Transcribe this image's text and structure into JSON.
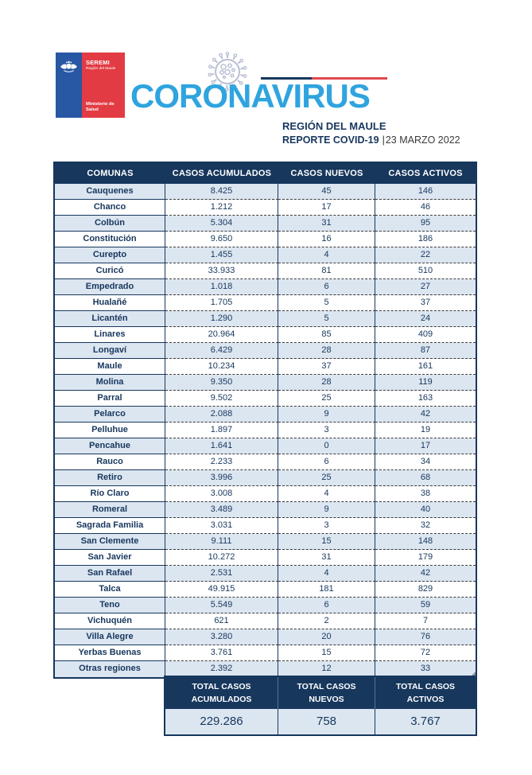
{
  "header": {
    "logo": {
      "agency": "SEREMI",
      "region": "Región del Maule",
      "ministry_line1": "Ministerio de",
      "ministry_line2": "Salud"
    },
    "title": "CORONAVIRUS",
    "region_title": "REGIÓN DEL MAULE",
    "report_label": "REPORTE COVID-19",
    "report_separator": "|",
    "report_date": "23 MARZO 2022"
  },
  "table": {
    "columns": [
      "COMUNAS",
      "CASOS ACUMULADOS",
      "CASOS NUEVOS",
      "CASOS ACTIVOS"
    ],
    "rows": [
      [
        "Cauquenes",
        "8.425",
        "45",
        "146"
      ],
      [
        "Chanco",
        "1.212",
        "17",
        "46"
      ],
      [
        "Colbún",
        "5.304",
        "31",
        "95"
      ],
      [
        "Constitución",
        "9.650",
        "16",
        "186"
      ],
      [
        "Curepto",
        "1.455",
        "4",
        "22"
      ],
      [
        "Curicó",
        "33.933",
        "81",
        "510"
      ],
      [
        "Empedrado",
        "1.018",
        "6",
        "27"
      ],
      [
        "Hualañé",
        "1.705",
        "5",
        "37"
      ],
      [
        "Licantén",
        "1.290",
        "5",
        "24"
      ],
      [
        "Linares",
        "20.964",
        "85",
        "409"
      ],
      [
        "Longaví",
        "6.429",
        "28",
        "87"
      ],
      [
        "Maule",
        "10.234",
        "37",
        "161"
      ],
      [
        "Molina",
        "9.350",
        "28",
        "119"
      ],
      [
        "Parral",
        "9.502",
        "25",
        "163"
      ],
      [
        "Pelarco",
        "2.088",
        "9",
        "42"
      ],
      [
        "Pelluhue",
        "1.897",
        "3",
        "19"
      ],
      [
        "Pencahue",
        "1.641",
        "0",
        "17"
      ],
      [
        "Rauco",
        "2.233",
        "6",
        "34"
      ],
      [
        "Retiro",
        "3.996",
        "25",
        "68"
      ],
      [
        "Río Claro",
        "3.008",
        "4",
        "38"
      ],
      [
        "Romeral",
        "3.489",
        "9",
        "40"
      ],
      [
        "Sagrada Familia",
        "3.031",
        "3",
        "32"
      ],
      [
        "San Clemente",
        "9.111",
        "15",
        "148"
      ],
      [
        "San Javier",
        "10.272",
        "31",
        "179"
      ],
      [
        "San Rafael",
        "2.531",
        "4",
        "42"
      ],
      [
        "Talca",
        "49.915",
        "181",
        "829"
      ],
      [
        "Teno",
        "5.549",
        "6",
        "59"
      ],
      [
        "Vichuquén",
        "621",
        "2",
        "7"
      ],
      [
        "Villa Alegre",
        "3.280",
        "20",
        "76"
      ],
      [
        "Yerbas Buenas",
        "3.761",
        "15",
        "72"
      ],
      [
        "Otras regiones",
        "2.392",
        "12",
        "33"
      ]
    ]
  },
  "totals": {
    "cards": [
      {
        "label_line1": "TOTAL CASOS",
        "label_line2": "ACUMULADOS",
        "value": "229.286"
      },
      {
        "label_line1": "TOTAL CASOS",
        "label_line2": "NUEVOS",
        "value": "758"
      },
      {
        "label_line1": "TOTAL CASOS",
        "label_line2": "ACTIVOS",
        "value": "3.767"
      }
    ]
  },
  "colors": {
    "navy": "#17375D",
    "row_stripe": "#DCE6F1",
    "title_blue": "#2FA4DE",
    "logo_blue": "#2857A4",
    "logo_red": "#E23B43",
    "line_red": "#E0484E",
    "virus_gray": "#B9C0D5"
  },
  "chart_data": {
    "type": "table",
    "title": "REPORTE COVID-19 Región del Maule, 23 Marzo 2022",
    "columns": [
      "Comuna",
      "Casos acumulados",
      "Casos nuevos",
      "Casos activos"
    ],
    "rows": [
      [
        "Cauquenes",
        8425,
        45,
        146
      ],
      [
        "Chanco",
        1212,
        17,
        46
      ],
      [
        "Colbún",
        5304,
        31,
        95
      ],
      [
        "Constitución",
        9650,
        16,
        186
      ],
      [
        "Curepto",
        1455,
        4,
        22
      ],
      [
        "Curicó",
        33933,
        81,
        510
      ],
      [
        "Empedrado",
        1018,
        6,
        27
      ],
      [
        "Hualañé",
        1705,
        5,
        37
      ],
      [
        "Licantén",
        1290,
        5,
        24
      ],
      [
        "Linares",
        20964,
        85,
        409
      ],
      [
        "Longaví",
        6429,
        28,
        87
      ],
      [
        "Maule",
        10234,
        37,
        161
      ],
      [
        "Molina",
        9350,
        28,
        119
      ],
      [
        "Parral",
        9502,
        25,
        163
      ],
      [
        "Pelarco",
        2088,
        9,
        42
      ],
      [
        "Pelluhue",
        1897,
        3,
        19
      ],
      [
        "Pencahue",
        1641,
        0,
        17
      ],
      [
        "Rauco",
        2233,
        6,
        34
      ],
      [
        "Retiro",
        3996,
        25,
        68
      ],
      [
        "Río Claro",
        3008,
        4,
        38
      ],
      [
        "Romeral",
        3489,
        9,
        40
      ],
      [
        "Sagrada Familia",
        3031,
        3,
        32
      ],
      [
        "San Clemente",
        9111,
        15,
        148
      ],
      [
        "San Javier",
        10272,
        31,
        179
      ],
      [
        "San Rafael",
        2531,
        4,
        42
      ],
      [
        "Talca",
        49915,
        181,
        829
      ],
      [
        "Teno",
        5549,
        6,
        59
      ],
      [
        "Vichuquén",
        621,
        2,
        7
      ],
      [
        "Villa Alegre",
        3280,
        20,
        76
      ],
      [
        "Yerbas Buenas",
        3761,
        15,
        72
      ],
      [
        "Otras regiones",
        2392,
        12,
        33
      ]
    ],
    "totals": {
      "acumulados": 229286,
      "nuevos": 758,
      "activos": 3767
    }
  }
}
